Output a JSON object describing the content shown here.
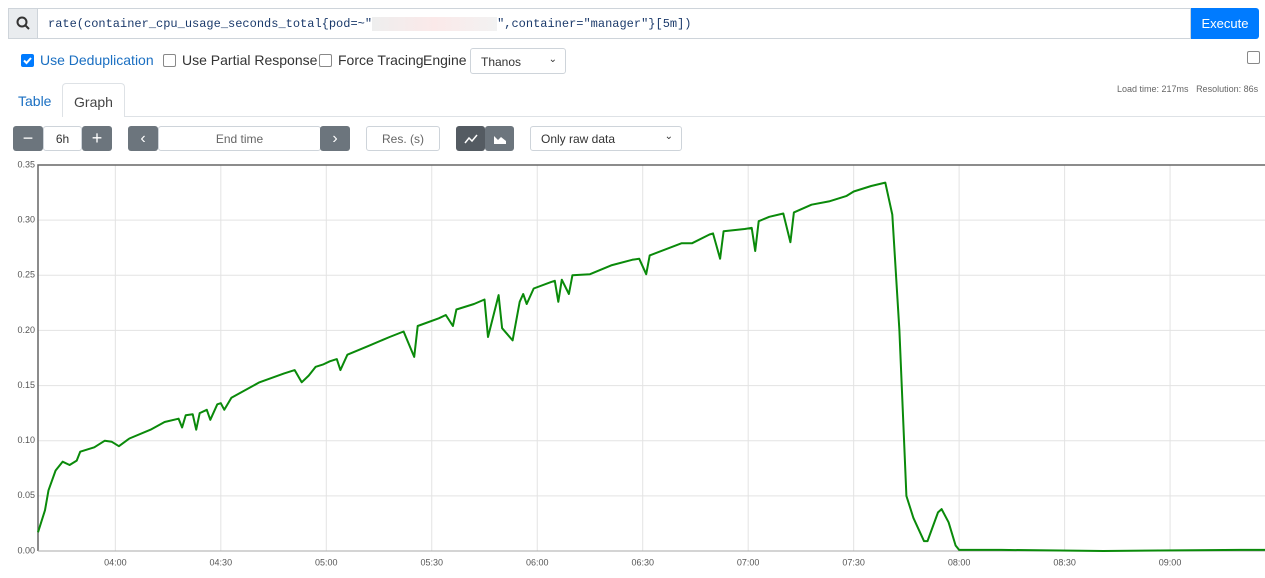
{
  "query": {
    "prefix": "rate(container_cpu_usage_seconds_total{pod=~\"",
    "suffix": "\",container=\"manager\"}[5m])"
  },
  "execute": "Execute",
  "options": {
    "deduplication": "Use Deduplication",
    "partial_response": "Use Partial Response",
    "force_tracing": "Force Tracing",
    "engine_label": "Engine",
    "engine": "Thanos"
  },
  "tabs": [
    "Table",
    "Graph"
  ],
  "stats": {
    "load_time": "Load time: 217ms",
    "resolution": "Resolution: 86s"
  },
  "controls": {
    "range": "6h",
    "end_time": "End time",
    "resolution": "Res. (s)",
    "mode": "Only raw data"
  },
  "chart_data": {
    "type": "line",
    "x": [
      "03:38",
      "03:40",
      "03:41",
      "03:43",
      "03:45",
      "03:47",
      "03:49",
      "03:50",
      "03:54",
      "03:57",
      "03:59",
      "04:01",
      "04:04",
      "04:10",
      "04:14",
      "04:18",
      "04:19",
      "04:20",
      "04:22",
      "04:23",
      "04:24",
      "04:26",
      "04:27",
      "04:29",
      "04:30",
      "04:31",
      "04:33",
      "04:41",
      "04:48",
      "04:51",
      "04:53",
      "04:55",
      "04:57",
      "04:59",
      "05:01",
      "05:03",
      "05:04",
      "05:06",
      "05:12",
      "05:18",
      "05:22",
      "05:25",
      "05:26",
      "05:32",
      "05:34",
      "05:36",
      "05:37",
      "05:42",
      "05:45",
      "05:46",
      "05:49",
      "05:50",
      "05:53",
      "05:55",
      "05:56",
      "05:57",
      "05:59",
      "06:04",
      "06:05",
      "06:06",
      "06:07",
      "06:09",
      "06:10",
      "06:15",
      "06:21",
      "06:27",
      "06:29",
      "06:31",
      "06:32",
      "06:41",
      "06:44",
      "06:49",
      "06:50",
      "06:52",
      "06:53",
      "06:59",
      "07:01",
      "07:02",
      "07:03",
      "07:06",
      "07:10",
      "07:12",
      "07:13",
      "07:18",
      "07:23",
      "07:28",
      "07:30",
      "07:35",
      "07:39",
      "07:41",
      "07:43",
      "07:45",
      "07:47",
      "07:50",
      "07:51",
      "07:54",
      "07:55",
      "07:57",
      "07:59",
      "08:00",
      "08:12",
      "08:41",
      "09:20",
      "09:27"
    ],
    "series": [
      {
        "color": "#0a8a0a",
        "values": [
          0.017,
          0.037,
          0.055,
          0.073,
          0.081,
          0.078,
          0.082,
          0.09,
          0.094,
          0.1,
          0.099,
          0.095,
          0.102,
          0.11,
          0.117,
          0.12,
          0.112,
          0.123,
          0.124,
          0.11,
          0.125,
          0.128,
          0.119,
          0.133,
          0.134,
          0.128,
          0.139,
          0.153,
          0.161,
          0.164,
          0.153,
          0.159,
          0.167,
          0.169,
          0.172,
          0.174,
          0.164,
          0.178,
          0.186,
          0.194,
          0.199,
          0.176,
          0.204,
          0.211,
          0.214,
          0.204,
          0.219,
          0.224,
          0.228,
          0.194,
          0.232,
          0.202,
          0.191,
          0.226,
          0.233,
          0.224,
          0.238,
          0.244,
          0.245,
          0.226,
          0.246,
          0.233,
          0.25,
          0.251,
          0.259,
          0.264,
          0.265,
          0.251,
          0.268,
          0.279,
          0.279,
          0.287,
          0.288,
          0.265,
          0.29,
          0.292,
          0.293,
          0.272,
          0.299,
          0.303,
          0.306,
          0.28,
          0.307,
          0.314,
          0.317,
          0.322,
          0.326,
          0.331,
          0.334,
          0.305,
          0.2,
          0.05,
          0.03,
          0.009,
          0.009,
          0.035,
          0.038,
          0.026,
          0.005,
          0.001,
          0.001,
          0.0,
          0.001,
          0.001
        ]
      }
    ],
    "xlim": [
      "03:38",
      "09:27"
    ],
    "xticks": [
      "04:00",
      "04:30",
      "05:00",
      "05:30",
      "06:00",
      "06:30",
      "07:00",
      "07:30",
      "08:00",
      "08:30",
      "09:00"
    ],
    "ylim": [
      0,
      0.35
    ],
    "yticks": [
      {
        "value": 0,
        "label": "0.00"
      },
      0.05,
      {
        "value": 0.1,
        "label": "0.10"
      },
      0.15,
      {
        "value": 0.2,
        "label": "0.20"
      },
      0.25,
      {
        "value": 0.3,
        "label": "0.30"
      },
      0.35
    ],
    "grid": true
  }
}
